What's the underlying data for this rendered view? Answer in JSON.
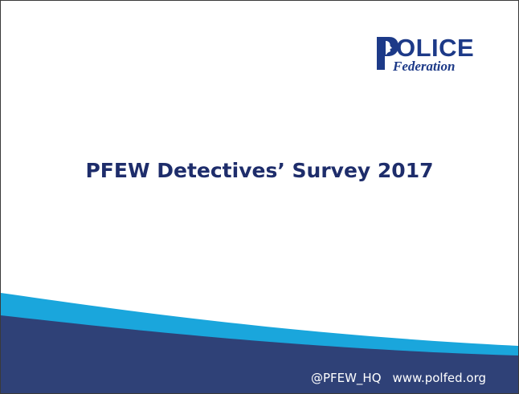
{
  "slide": {
    "title": "PFEW Detectives’ Survey 2017"
  },
  "logo": {
    "name_main": "OLICE",
    "name_sub": "Federation",
    "brand_color": "#1d3a88"
  },
  "footer": {
    "twitter_handle": "@PFEW_HQ",
    "website": "www.polfed.org"
  },
  "colors": {
    "title": "#1e2d6b",
    "wave_dark": "#2f4177",
    "wave_light": "#1aa6dc",
    "footer_text": "#ffffff"
  }
}
